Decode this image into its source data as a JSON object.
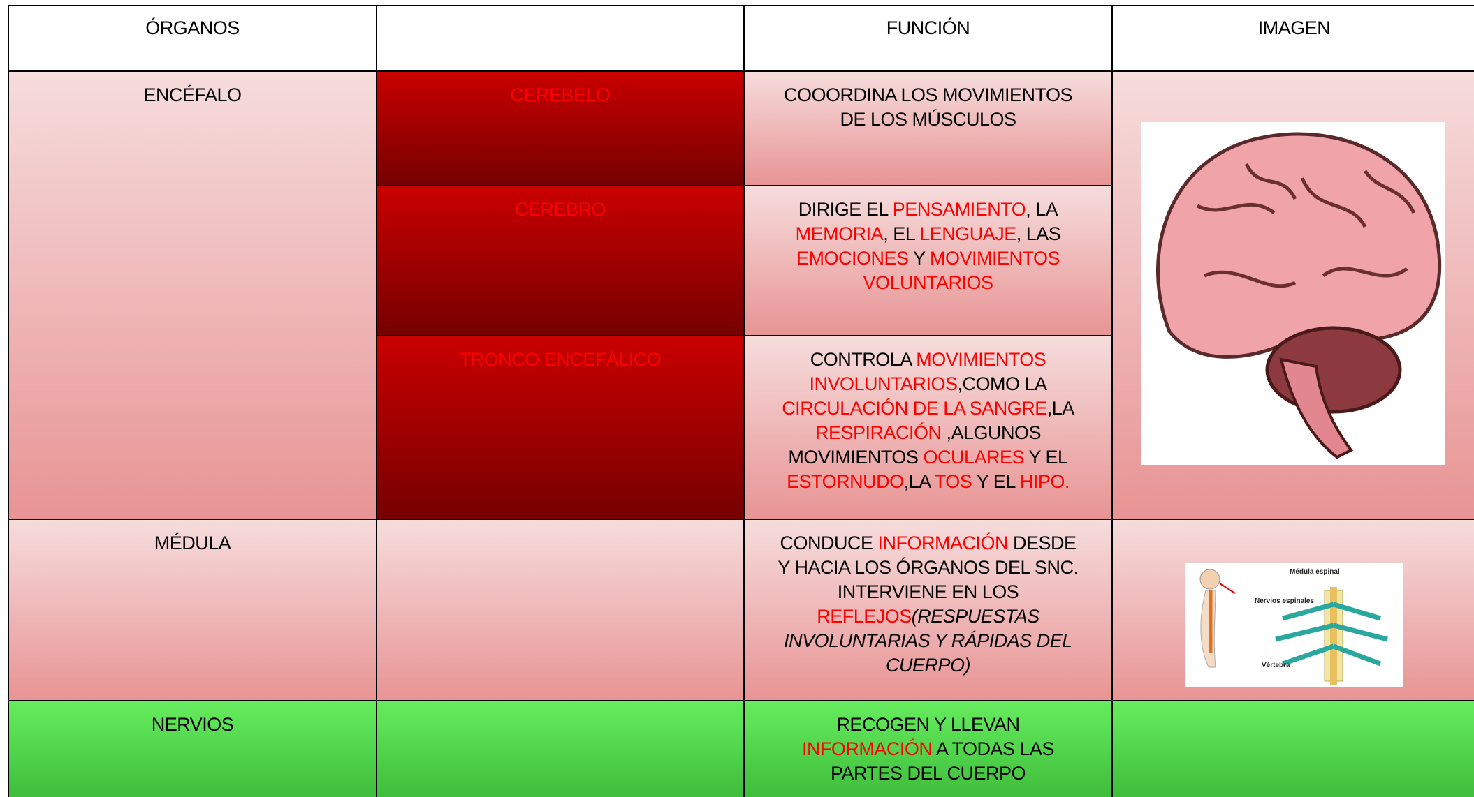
{
  "header": {
    "organs": "ÓRGANOS",
    "function": "FUNCIÓN",
    "image": "IMAGEN"
  },
  "rows": [
    {
      "organ": "ENCÉFALO",
      "parts": [
        {
          "name": "CEREBELO",
          "function": [
            [
              {
                "text": "COOORDINA LOS MOVIMIENTOS"
              }
            ],
            [
              {
                "text": "DE LOS MÚSCULOS"
              }
            ]
          ]
        },
        {
          "name": "CEREBRO",
          "function": [
            [
              {
                "text": "DIRIGE EL "
              },
              {
                "text": "PENSAMIENTO",
                "color": "red"
              },
              {
                "text": ", LA"
              }
            ],
            [
              {
                "text": "MEMORIA",
                "color": "red"
              },
              {
                "text": ", EL "
              },
              {
                "text": "LENGUAJE",
                "color": "red"
              },
              {
                "text": ", LAS"
              }
            ],
            [
              {
                "text": "EMOCIONES",
                "color": "red"
              },
              {
                "text": " Y "
              },
              {
                "text": "MOVIMIENTOS",
                "color": "red"
              }
            ],
            [
              {
                "text": "VOLUNTARIOS",
                "color": "red"
              }
            ]
          ]
        },
        {
          "name": "TRONCO ENCEFÁLICO",
          "function": [
            [
              {
                "text": "CONTROLA "
              },
              {
                "text": "MOVIMIENTOS",
                "color": "red"
              }
            ],
            [
              {
                "text": "INVOLUNTARIOS",
                "color": "red"
              },
              {
                "text": ",COMO LA"
              }
            ],
            [
              {
                "text": "CIRCULACIÓN DE LA SANGRE",
                "color": "red"
              },
              {
                "text": ",LA"
              }
            ],
            [
              {
                "text": "RESPIRACIÓN",
                "color": "red"
              },
              {
                "text": " ,ALGUNOS"
              }
            ],
            [
              {
                "text": "MOVIMIENTOS "
              },
              {
                "text": "OCULARES",
                "color": "red"
              },
              {
                "text": " Y EL"
              }
            ],
            [
              {
                "text": "ESTORNUDO",
                "color": "red"
              },
              {
                "text": ",LA "
              },
              {
                "text": "TOS",
                "color": "red"
              },
              {
                "text": " Y EL "
              },
              {
                "text": "HIPO.",
                "color": "red"
              }
            ]
          ]
        }
      ]
    },
    {
      "organ": "MÉDULA",
      "function": [
        [
          {
            "text": "CONDUCE "
          },
          {
            "text": "INFORMACIÓN",
            "color": "red"
          },
          {
            "text": " DESDE"
          }
        ],
        [
          {
            "text": "Y HACIA LOS ÓRGANOS DEL SNC."
          }
        ],
        [
          {
            "text": "INTERVIENE EN LOS"
          }
        ],
        [
          {
            "text": "REFLEJOS",
            "color": "red"
          },
          {
            "text": "(RESPUESTAS",
            "italic": true
          }
        ],
        [
          {
            "text": "INVOLUNTARIAS Y RÁPIDAS DEL",
            "italic": true
          }
        ],
        [
          {
            "text": "CUERPO)",
            "italic": true
          }
        ]
      ],
      "image_labels": [
        "Médula espinal",
        "Nervios espinales",
        "Vértebra"
      ]
    },
    {
      "organ": "NERVIOS",
      "function": [
        [
          {
            "text": "RECOGEN Y LLEVAN"
          }
        ],
        [
          {
            "text": "INFORMACIÓN",
            "color": "red"
          },
          {
            "text": " A TODAS LAS"
          }
        ],
        [
          {
            "text": "PARTES DEL CUERPO"
          }
        ]
      ]
    }
  ]
}
